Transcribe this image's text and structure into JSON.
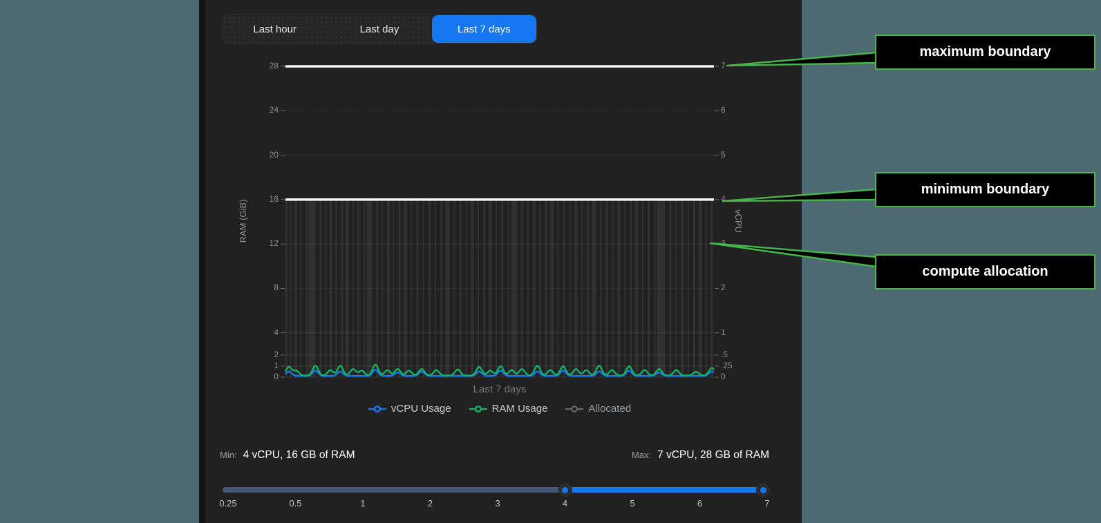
{
  "app": {
    "background_color": "#4d6971",
    "panel_color": "#212121",
    "accent_blue": "#1677f3",
    "green": "#16b364",
    "callout_green": "#46b54a",
    "allocated_gray": "rgba(255,255,255,0.07)",
    "boundary_white": "#f7f7f7"
  },
  "tabs": [
    {
      "label": "Last hour",
      "selected": false
    },
    {
      "label": "Last day",
      "selected": false
    },
    {
      "label": "Last 7 days",
      "selected": true
    }
  ],
  "chart_data": {
    "type": "line",
    "xlabel": "Last 7 days",
    "grid": true,
    "legend_position": "bottom",
    "y_left": {
      "label": "RAM (GiB)",
      "ticks": [
        "28",
        "24",
        "20",
        "16",
        "12",
        "8",
        "4",
        "2",
        "1",
        "0"
      ],
      "range": [
        0,
        28
      ]
    },
    "y_right": {
      "label": "vCPU",
      "ticks": [
        "7",
        "6",
        "5",
        "4",
        "3",
        "2",
        "1",
        ".5",
        ".25",
        "0"
      ],
      "range": [
        0,
        7
      ]
    },
    "boundaries": {
      "maximum": {
        "vcpu": 7,
        "ram_gib": 28
      },
      "minimum": {
        "vcpu": 4,
        "ram_gib": 16
      }
    },
    "series": [
      {
        "name": "vCPU Usage",
        "color": "#1677f3",
        "unit": "vCPU",
        "baseline": 0.03,
        "peaks": [
          [
            0.008,
            0.1
          ],
          [
            0.07,
            0.12
          ],
          [
            0.128,
            0.1
          ],
          [
            0.21,
            0.14
          ],
          [
            0.262,
            0.08
          ],
          [
            0.318,
            0.1
          ],
          [
            0.452,
            0.1
          ],
          [
            0.502,
            0.12
          ],
          [
            0.588,
            0.1
          ],
          [
            0.648,
            0.12
          ],
          [
            0.732,
            0.1
          ],
          [
            0.802,
            0.12
          ],
          [
            0.872,
            0.08
          ],
          [
            0.995,
            0.1
          ]
        ]
      },
      {
        "name": "RAM Usage",
        "color": "#16b364",
        "unit": "GiB",
        "baseline": 0.15,
        "peaks": [
          [
            0.008,
            0.8
          ],
          [
            0.025,
            0.45
          ],
          [
            0.07,
            0.9
          ],
          [
            0.105,
            0.5
          ],
          [
            0.128,
            0.9
          ],
          [
            0.158,
            0.6
          ],
          [
            0.178,
            0.45
          ],
          [
            0.21,
            1.0
          ],
          [
            0.238,
            0.5
          ],
          [
            0.262,
            0.6
          ],
          [
            0.288,
            0.45
          ],
          [
            0.318,
            0.6
          ],
          [
            0.352,
            0.5
          ],
          [
            0.402,
            0.55
          ],
          [
            0.452,
            0.8
          ],
          [
            0.478,
            0.45
          ],
          [
            0.502,
            0.85
          ],
          [
            0.528,
            0.5
          ],
          [
            0.552,
            0.6
          ],
          [
            0.588,
            0.9
          ],
          [
            0.618,
            0.5
          ],
          [
            0.648,
            0.85
          ],
          [
            0.678,
            0.6
          ],
          [
            0.702,
            0.5
          ],
          [
            0.732,
            0.9
          ],
          [
            0.762,
            0.5
          ],
          [
            0.802,
            0.85
          ],
          [
            0.838,
            0.5
          ],
          [
            0.872,
            0.6
          ],
          [
            0.912,
            0.5
          ],
          [
            0.958,
            0.35
          ],
          [
            0.995,
            0.7
          ]
        ]
      },
      {
        "name": "Allocated",
        "color": "#6e6e6e",
        "constant_gib": 16,
        "constant_vcpu": 4,
        "bars": [
          [
            0.002,
            3
          ],
          [
            0.012,
            2
          ],
          [
            0.024,
            4
          ],
          [
            0.036,
            2
          ],
          [
            0.05,
            3
          ],
          [
            0.062,
            10
          ],
          [
            0.082,
            3
          ],
          [
            0.094,
            2
          ],
          [
            0.106,
            4
          ],
          [
            0.118,
            2
          ],
          [
            0.132,
            3
          ],
          [
            0.144,
            5
          ],
          [
            0.158,
            2
          ],
          [
            0.17,
            3
          ],
          [
            0.184,
            2
          ],
          [
            0.196,
            8
          ],
          [
            0.214,
            3
          ],
          [
            0.226,
            2
          ],
          [
            0.24,
            4
          ],
          [
            0.252,
            2
          ],
          [
            0.266,
            3
          ],
          [
            0.28,
            5
          ],
          [
            0.294,
            2
          ],
          [
            0.308,
            3
          ],
          [
            0.322,
            2
          ],
          [
            0.336,
            4
          ],
          [
            0.35,
            2
          ],
          [
            0.364,
            3
          ],
          [
            0.378,
            6
          ],
          [
            0.394,
            2
          ],
          [
            0.408,
            3
          ],
          [
            0.422,
            2
          ],
          [
            0.436,
            4
          ],
          [
            0.45,
            2
          ],
          [
            0.464,
            3
          ],
          [
            0.478,
            5
          ],
          [
            0.492,
            2
          ],
          [
            0.506,
            3
          ],
          [
            0.52,
            2
          ],
          [
            0.534,
            9
          ],
          [
            0.552,
            3
          ],
          [
            0.566,
            2
          ],
          [
            0.58,
            4
          ],
          [
            0.594,
            2
          ],
          [
            0.608,
            3
          ],
          [
            0.622,
            5
          ],
          [
            0.636,
            2
          ],
          [
            0.65,
            3
          ],
          [
            0.664,
            2
          ],
          [
            0.678,
            4
          ],
          [
            0.692,
            2
          ],
          [
            0.706,
            3
          ],
          [
            0.72,
            6
          ],
          [
            0.736,
            2
          ],
          [
            0.75,
            3
          ],
          [
            0.764,
            2
          ],
          [
            0.778,
            4
          ],
          [
            0.792,
            2
          ],
          [
            0.806,
            3
          ],
          [
            0.82,
            5
          ],
          [
            0.834,
            2
          ],
          [
            0.848,
            3
          ],
          [
            0.862,
            2
          ],
          [
            0.876,
            12
          ],
          [
            0.898,
            3
          ],
          [
            0.912,
            2
          ],
          [
            0.926,
            4
          ],
          [
            0.94,
            2
          ],
          [
            0.954,
            3
          ],
          [
            0.968,
            5
          ],
          [
            0.982,
            2
          ],
          [
            0.995,
            3
          ]
        ]
      }
    ]
  },
  "summary": {
    "min_label": "Min:",
    "min_value": "4 vCPU, 16 GB of RAM",
    "max_label": "Max:",
    "max_value": "7 vCPU, 28 GB of RAM"
  },
  "slider": {
    "min": 0.25,
    "max": 7,
    "selected_range": [
      4,
      7
    ],
    "tick_labels": [
      "0.25",
      "0.5",
      "1",
      "2",
      "3",
      "4",
      "5",
      "6",
      "7"
    ]
  },
  "callouts": [
    {
      "label": "maximum boundary"
    },
    {
      "label": "minimum boundary"
    },
    {
      "label": "compute allocation"
    }
  ]
}
